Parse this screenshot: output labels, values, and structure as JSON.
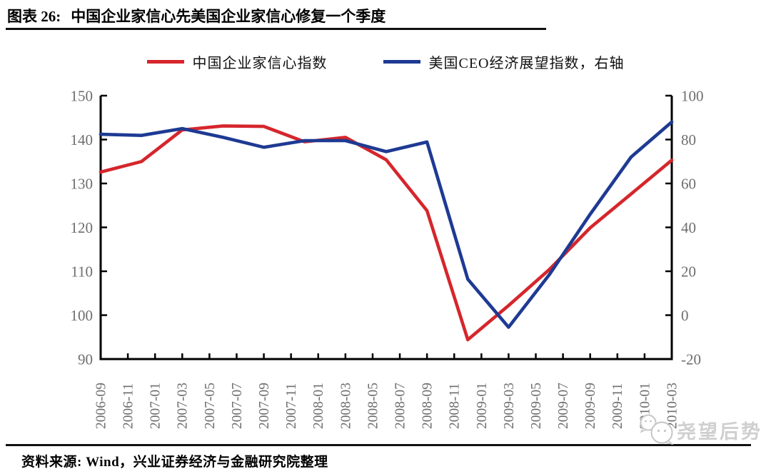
{
  "figure": {
    "label": "图表 26:",
    "title": "中国企业家信心先美国企业家信心修复一个季度"
  },
  "legend": [
    {
      "label": "中国企业家信心指数",
      "color": "#d5262c"
    },
    {
      "label": "美国CEO经济展望指数，右轴",
      "color": "#1e3a93"
    }
  ],
  "chart_data": {
    "type": "line",
    "title": "图表 26: 中国企业家信心先美国企业家信心修复一个季度",
    "xlabel": "",
    "ylabel_left": "",
    "ylabel_right": "",
    "grid": false,
    "legend_position": "top",
    "axis_color": "#000000",
    "tick_text_color": "#6e6e6e",
    "x_tick_labels": [
      "2006-09",
      "2006-11",
      "2007-01",
      "2007-03",
      "2007-05",
      "2007-07",
      "2007-09",
      "2007-11",
      "2008-01",
      "2008-03",
      "2008-05",
      "2008-07",
      "2008-09",
      "2008-11",
      "2009-01",
      "2009-03",
      "2009-05",
      "2009-07",
      "2009-09",
      "2009-11",
      "2010-01",
      "2010-03"
    ],
    "x_dates": [
      "2006-09",
      "2006-12",
      "2007-03",
      "2007-06",
      "2007-09",
      "2007-12",
      "2008-03",
      "2008-06",
      "2008-09",
      "2008-12",
      "2009-03",
      "2009-06",
      "2009-09",
      "2009-12",
      "2010-03"
    ],
    "x_months": [
      0,
      3,
      6,
      9,
      12,
      15,
      18,
      21,
      24,
      27,
      30,
      33,
      36,
      39,
      42
    ],
    "x_month_span": 42,
    "tick_month_step": 2,
    "left_axis": {
      "min": 90,
      "max": 150,
      "ticks": [
        150,
        140,
        130,
        120,
        110,
        100,
        90
      ]
    },
    "right_axis": {
      "min": -20,
      "max": 100,
      "ticks": [
        100,
        80,
        60,
        40,
        20,
        0,
        -20
      ]
    },
    "series": [
      {
        "name": "中国企业家信心指数",
        "axis": "left",
        "color": "#d5262c",
        "values": [
          132.6,
          135.0,
          142.2,
          143.1,
          143.0,
          139.5,
          140.5,
          135.4,
          123.8,
          94.4,
          102.2,
          110.4,
          119.9,
          127.6,
          135.3
        ]
      },
      {
        "name": "美国CEO经济展望指数，右轴",
        "axis": "right",
        "color": "#1e3a93",
        "values": [
          82.4,
          81.9,
          85.0,
          81.0,
          76.5,
          79.5,
          79.5,
          74.5,
          78.9,
          16.4,
          -5.5,
          18.5,
          46.0,
          72.0,
          88.0
        ]
      }
    ]
  },
  "watermark": {
    "text": "尧望后势"
  },
  "footer": {
    "source": "资料来源: Wind，兴业证券经济与金融研究院整理"
  }
}
